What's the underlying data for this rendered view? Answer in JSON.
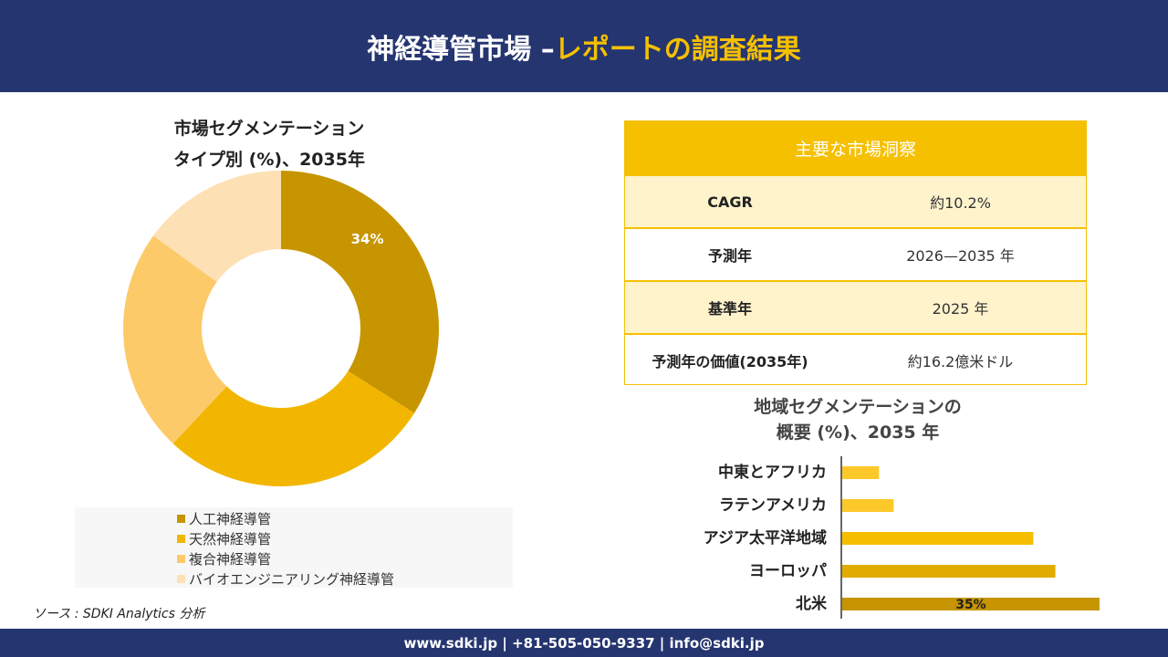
{
  "header": {
    "title_main": "神経導管市場 –",
    "title_accent": "レポートの調査結果"
  },
  "donut": {
    "title_line1": "市場セグメンテーション",
    "title_line2": "タイプ別 (%)、2035年"
  },
  "legend": [
    {
      "label": "人工神経導管",
      "color": "#c69500"
    },
    {
      "label": "天然神経導管",
      "color": "#f2b600"
    },
    {
      "label": "複合神経導管",
      "color": "#fdca6a"
    },
    {
      "label": "バイオエンジニアリング神経導管",
      "color": "#fde0b4"
    }
  ],
  "source": "ソース : SDKI Analytics 分析",
  "insight": {
    "title": "主要な市場洞察",
    "rows": [
      {
        "label": "CAGR",
        "value": "約10.2%"
      },
      {
        "label": "予測年",
        "value": "2026—2035 年"
      },
      {
        "label": "基準年",
        "value": "2025 年"
      },
      {
        "label": "予測年の価値(2035年)",
        "value": "約16.2億米ドル"
      }
    ]
  },
  "bar": {
    "title_line1": "地域セグメンテーションの",
    "title_line2": "概要 (%)、2035 年"
  },
  "footer": {
    "contact": "www.sdki.jp | +81-505-050-9337 | info@sdki.jp"
  },
  "chart_data": [
    {
      "type": "pie",
      "title": "市場セグメンテーション タイプ別 (%)、2035年",
      "categories": [
        "人工神経導管",
        "天然神経導管",
        "複合神経導管",
        "バイオエンジニアリング神経導管"
      ],
      "values": [
        34,
        28,
        23,
        15
      ],
      "data_labels": [
        "34%",
        "",
        "",
        ""
      ],
      "colors": [
        "#c69500",
        "#f2b600",
        "#fdca6a",
        "#fde0b4"
      ],
      "donut": true,
      "legend": "bottom"
    },
    {
      "type": "bar",
      "orientation": "horizontal",
      "title": "地域セグメンテーションの 概要 (%)、2035 年",
      "categories": [
        "中東とアフリカ",
        "ラテンアメリカ",
        "アジア太平洋地域",
        "ヨーロッパ",
        "北米"
      ],
      "values": [
        5,
        7,
        26,
        29,
        35
      ],
      "data_labels": [
        "",
        "",
        "",
        "",
        "35%"
      ],
      "colors": [
        "#fdc82a",
        "#fdc82a",
        "#f5bf00",
        "#e1ac00",
        "#c69500"
      ],
      "xlim": [
        0,
        36
      ],
      "grid": false
    }
  ]
}
